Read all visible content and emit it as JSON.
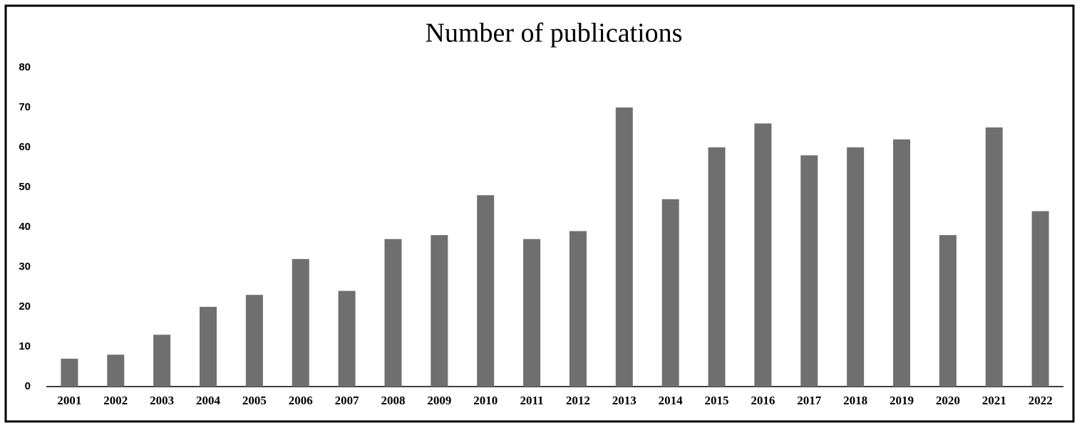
{
  "chart_data": {
    "type": "bar",
    "title": "Number of publications",
    "categories": [
      "2001",
      "2002",
      "2003",
      "2004",
      "2005",
      "2006",
      "2007",
      "2008",
      "2009",
      "2010",
      "2011",
      "2012",
      "2013",
      "2014",
      "2015",
      "2016",
      "2017",
      "2018",
      "2019",
      "2020",
      "2021",
      "2022"
    ],
    "values": [
      7,
      8,
      13,
      20,
      23,
      32,
      24,
      37,
      38,
      48,
      37,
      39,
      70,
      47,
      60,
      66,
      58,
      60,
      62,
      38,
      65,
      44
    ],
    "color": "#6e6f6e",
    "ylim": [
      0,
      80
    ],
    "yticks": [
      0,
      10,
      20,
      30,
      40,
      50,
      60,
      70,
      80
    ],
    "grid": false
  }
}
